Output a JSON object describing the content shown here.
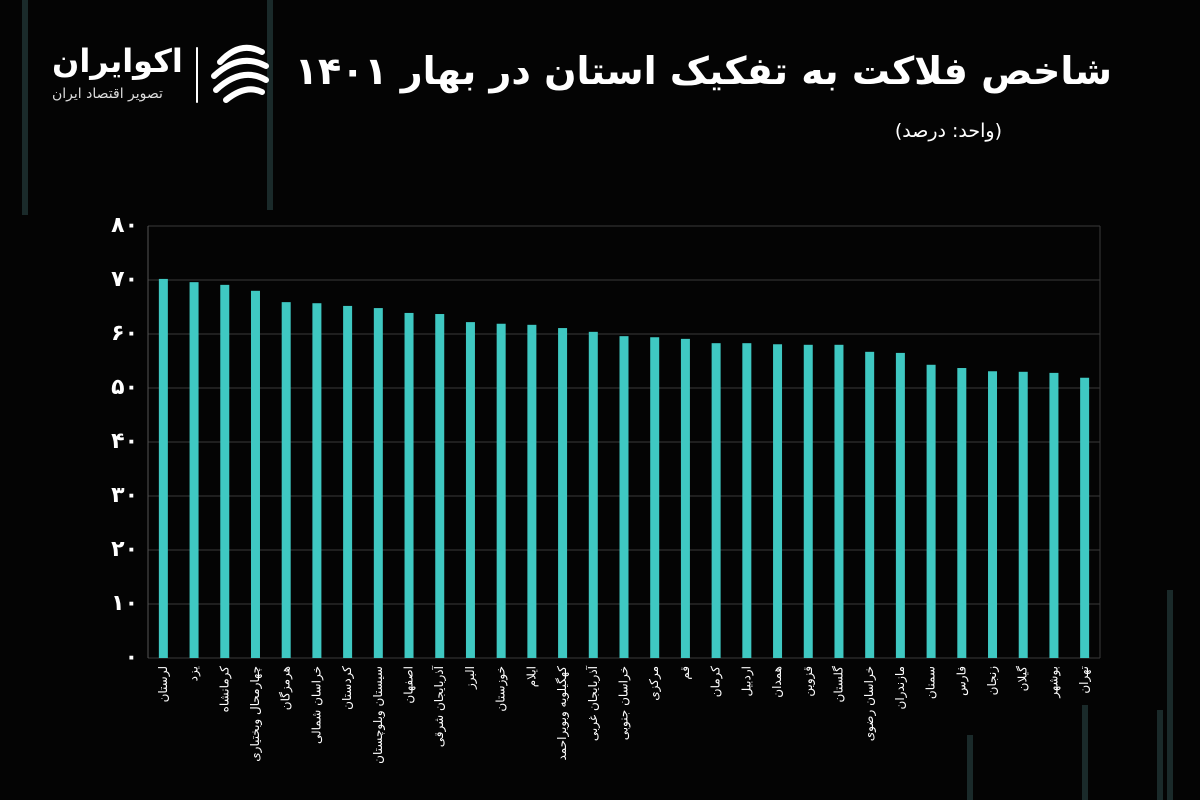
{
  "brand": {
    "name": "اکوایران",
    "tagline": "تصویر اقتصاد ایران"
  },
  "chart_data": {
    "type": "bar",
    "title": "شاخص فلاکت به تفکیک استان در بهار ۱۴۰۱",
    "subtitle": "(واحد: درصد)",
    "categories": [
      "لرستان",
      "یزد",
      "کرمانشاه",
      "چهارمحال وبختیاری",
      "هرمزگان",
      "خراسان شمالی",
      "کردستان",
      "سیستان وبلوچستان",
      "اصفهان",
      "آذربایجان شرقی",
      "البرز",
      "خوزستان",
      "ایلام",
      "کهگیلویه وبویراحمد",
      "آذربایجان غربی",
      "خراسان جنوبی",
      "مرکزی",
      "قم",
      "کرمان",
      "اردبیل",
      "همدان",
      "قزوین",
      "گلستان",
      "خراسان رضوی",
      "مازندران",
      "سمنان",
      "فارس",
      "زنجان",
      "گیلان",
      "بوشهر",
      "تهران"
    ],
    "values": [
      70.2,
      69.6,
      69.1,
      68.0,
      65.9,
      65.7,
      65.2,
      64.8,
      63.9,
      63.7,
      62.2,
      61.9,
      61.7,
      61.1,
      60.4,
      59.6,
      59.4,
      59.1,
      58.3,
      58.3,
      58.1,
      58.0,
      58.0,
      56.7,
      56.5,
      54.3,
      53.7,
      53.1,
      53.0,
      52.8,
      51.9
    ],
    "color": "#3fc8c2",
    "ylim": [
      0,
      80
    ],
    "yticks": [
      {
        "value": 0,
        "label": "۰"
      },
      {
        "value": 10,
        "label": "۱۰"
      },
      {
        "value": 20,
        "label": "۲۰"
      },
      {
        "value": 30,
        "label": "۳۰"
      },
      {
        "value": 40,
        "label": "۴۰"
      },
      {
        "value": 50,
        "label": "۵۰"
      },
      {
        "value": 60,
        "label": "۶۰"
      },
      {
        "value": 70,
        "label": "۷۰"
      },
      {
        "value": 80,
        "label": "۸۰"
      }
    ],
    "grid": true
  }
}
